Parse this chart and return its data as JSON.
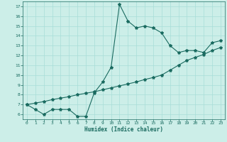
{
  "xlabel": "Humidex (Indice chaleur)",
  "bg_color": "#cceee8",
  "line_color": "#1a6b60",
  "xlim": [
    -0.5,
    23.5
  ],
  "ylim": [
    5.5,
    17.5
  ],
  "xticks": [
    0,
    1,
    2,
    3,
    4,
    5,
    6,
    7,
    8,
    9,
    10,
    11,
    12,
    13,
    14,
    15,
    16,
    17,
    18,
    19,
    20,
    21,
    22,
    23
  ],
  "yticks": [
    6,
    7,
    8,
    9,
    10,
    11,
    12,
    13,
    14,
    15,
    16,
    17
  ],
  "curve1_x": [
    0,
    1,
    2,
    3,
    4,
    5,
    6,
    7,
    8,
    9,
    10,
    11,
    12,
    13,
    14,
    15,
    16,
    17,
    18,
    19,
    20,
    21,
    22,
    23
  ],
  "curve1_y": [
    7.0,
    6.5,
    6.0,
    6.5,
    6.5,
    6.5,
    5.8,
    5.8,
    8.2,
    9.3,
    10.8,
    17.2,
    15.5,
    14.8,
    15.0,
    14.8,
    14.3,
    13.0,
    12.3,
    12.5,
    12.5,
    12.3,
    13.3,
    13.5
  ],
  "curve2_x": [
    0,
    1,
    2,
    3,
    4,
    5,
    6,
    7,
    8,
    9,
    10,
    11,
    12,
    13,
    14,
    15,
    16,
    17,
    18,
    19,
    20,
    21,
    22,
    23
  ],
  "curve2_y": [
    7.0,
    7.15,
    7.3,
    7.5,
    7.65,
    7.8,
    8.0,
    8.15,
    8.3,
    8.5,
    8.7,
    8.9,
    9.1,
    9.3,
    9.55,
    9.75,
    10.0,
    10.5,
    11.0,
    11.5,
    11.8,
    12.1,
    12.5,
    12.8
  ],
  "grid_color": "#a8ddd8",
  "marker": "*",
  "markersize": 3,
  "linewidth": 0.8
}
